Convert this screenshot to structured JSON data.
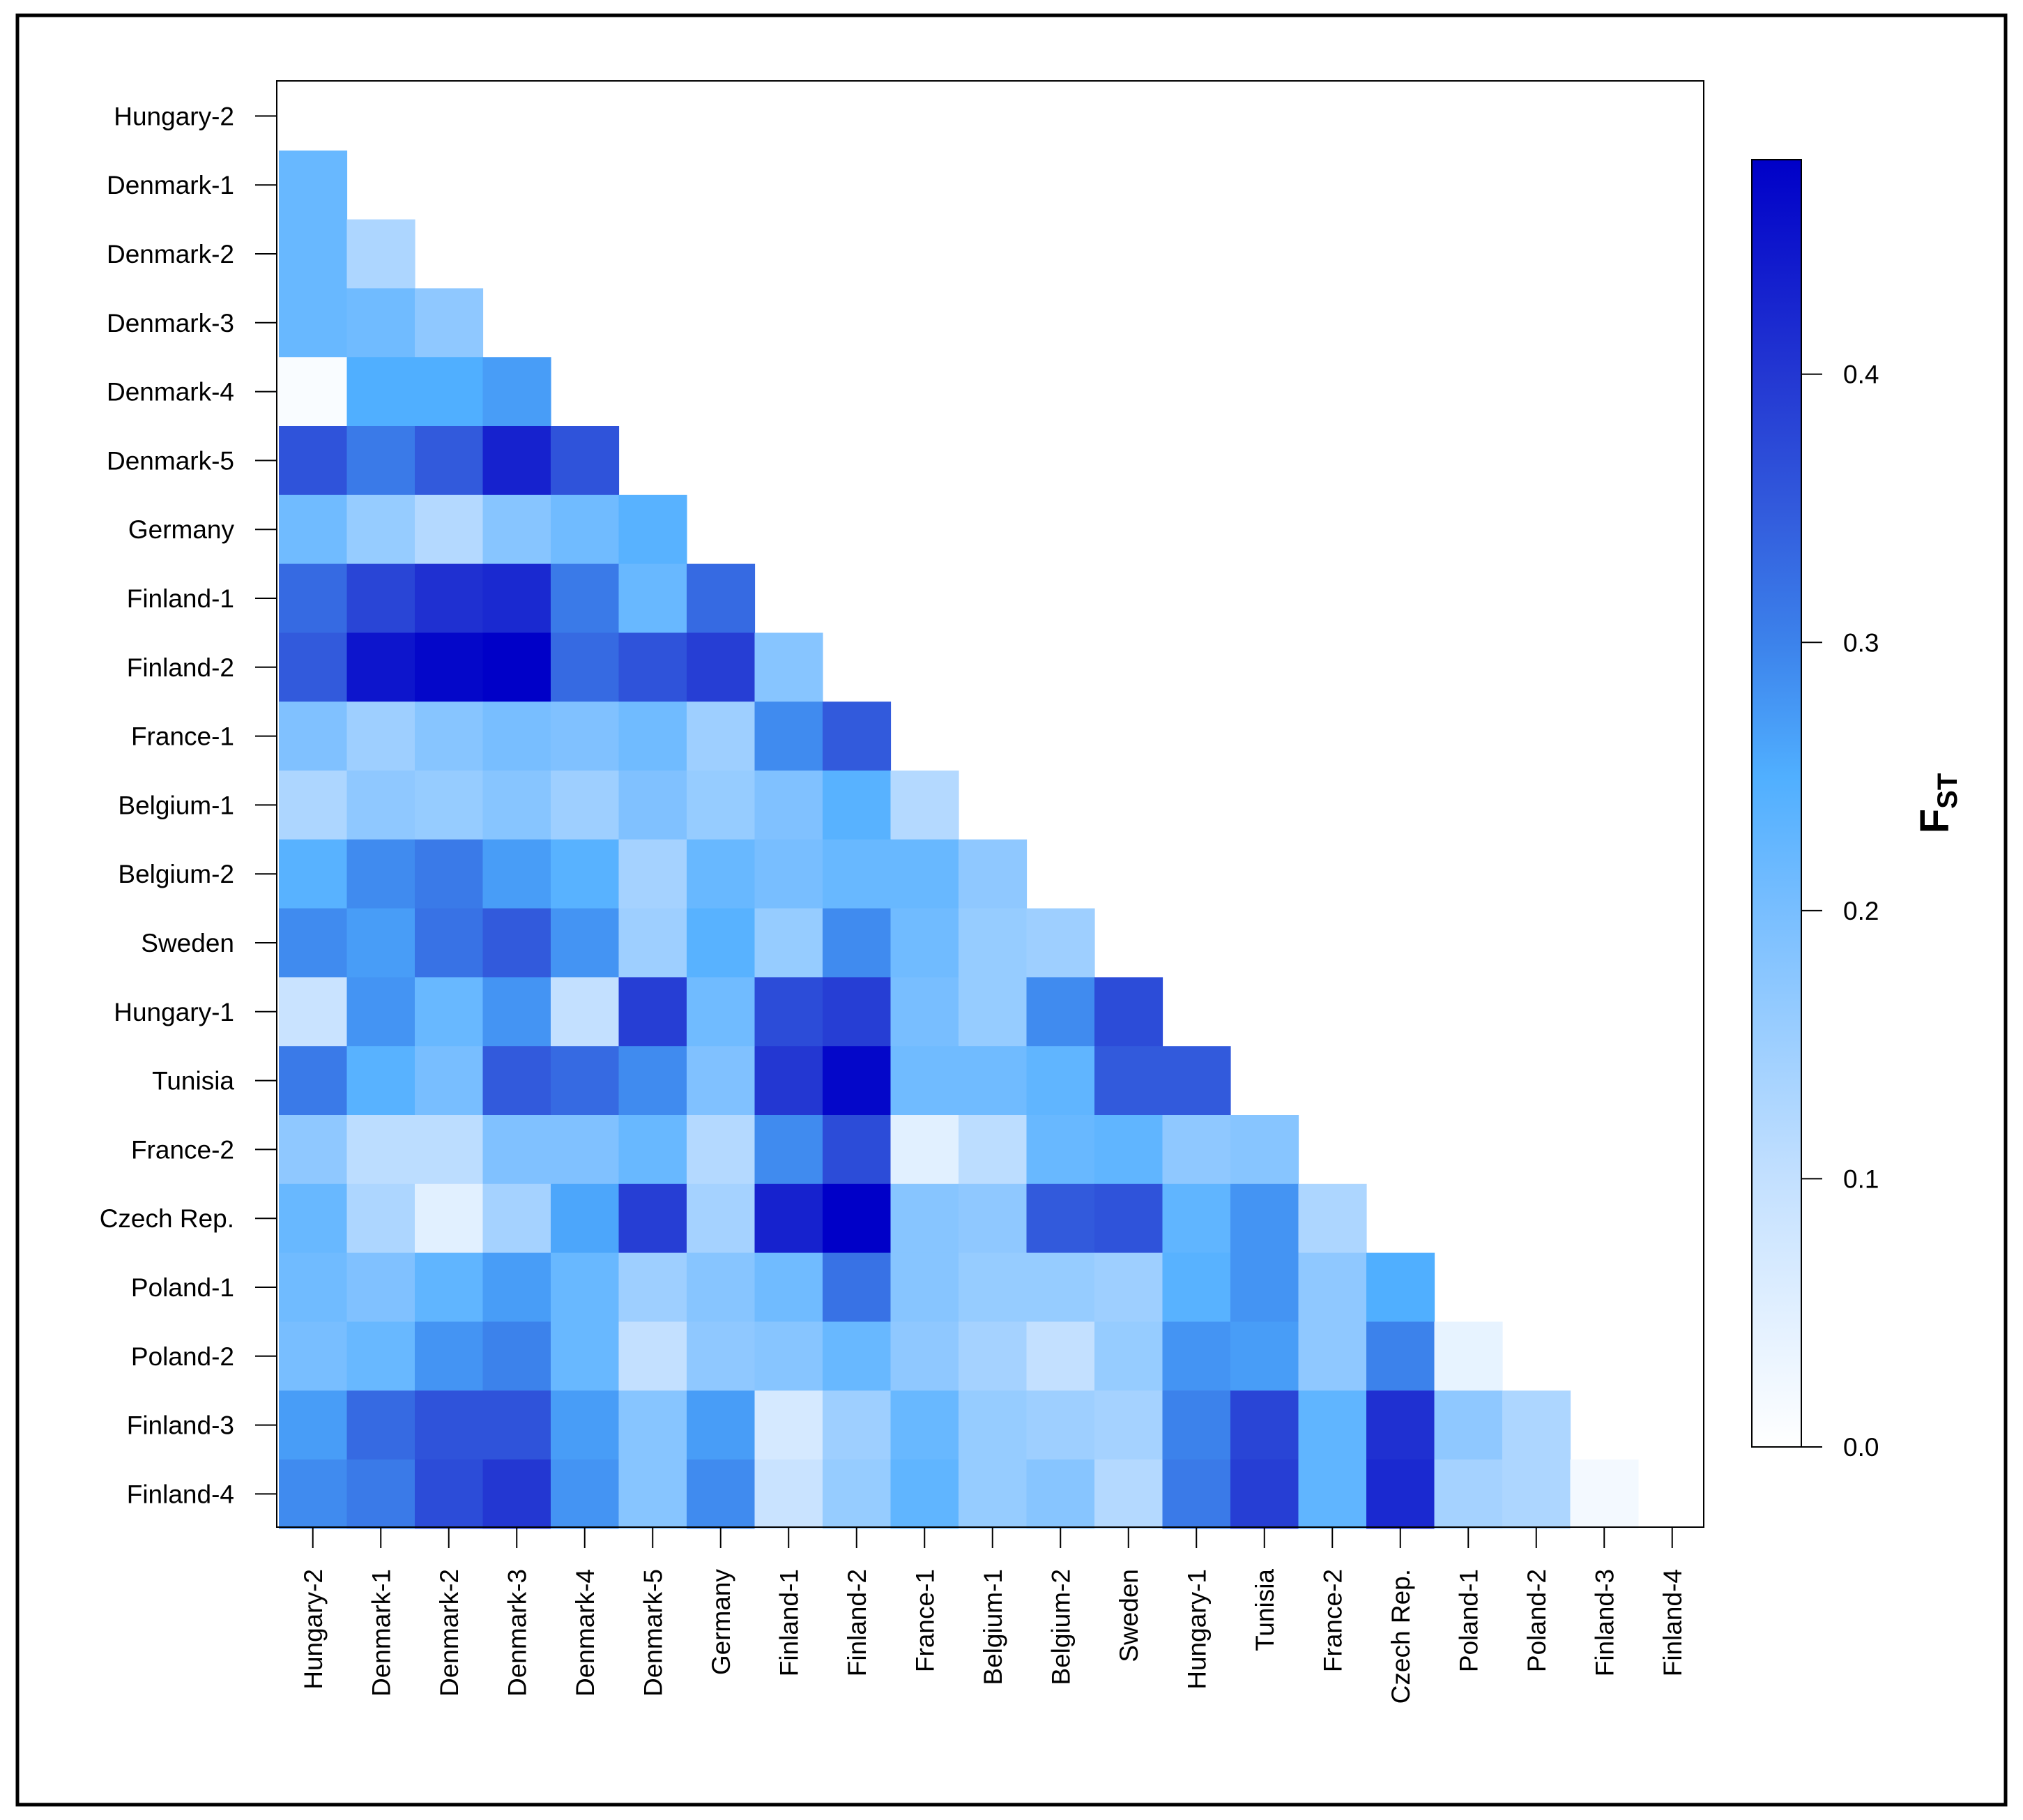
{
  "chart_data": {
    "type": "heatmap",
    "title": "",
    "legend_title": "F",
    "legend_subscript": "ST",
    "populations": [
      "Hungary-2",
      "Denmark-1",
      "Denmark-2",
      "Denmark-3",
      "Denmark-4",
      "Denmark-5",
      "Germany",
      "Finland-1",
      "Finland-2",
      "France-1",
      "Belgium-1",
      "Belgium-2",
      "Sweden",
      "Hungary-1",
      "Tunisia",
      "France-2",
      "Czech Rep.",
      "Poland-1",
      "Poland-2",
      "Finland-3",
      "Finland-4"
    ],
    "x_tick_labels": [
      "Hungary-2",
      "Denmark-1",
      "Denmark-2",
      "Denmark-3",
      "Denmark-4",
      "Denmark-5",
      "Germany",
      "Finland-1",
      "Finland-2",
      "France-1",
      "Belgium-1",
      "Belgium-2",
      "Sweden",
      "Hungary-1",
      "Tunisia",
      "France-2",
      "Czech Rep.",
      "Poland-1",
      "Poland-2",
      "Finland-3",
      "Finland-4"
    ],
    "y_tick_labels": [
      "Hungary-2",
      "Denmark-1",
      "Denmark-2",
      "Denmark-3",
      "Denmark-4",
      "Denmark-5",
      "Germany",
      "Finland-1",
      "Finland-2",
      "France-1",
      "Belgium-1",
      "Belgium-2",
      "Sweden",
      "Hungary-1",
      "Tunisia",
      "France-2",
      "Czech Rep.",
      "Poland-1",
      "Poland-2",
      "Finland-3",
      "Finland-4"
    ],
    "colorbar": {
      "range": [
        0.0,
        0.48
      ],
      "ticks": [
        0.0,
        0.1,
        0.2,
        0.3,
        0.4
      ],
      "tick_labels": [
        "0.0",
        "0.1",
        "0.2",
        "0.3",
        "0.4"
      ],
      "low_color": "#ffffff",
      "high_color": "#0000c8"
    },
    "matrix_lower": [
      [],
      [
        0.22
      ],
      [
        0.22,
        0.13
      ],
      [
        0.22,
        0.21,
        0.17
      ],
      [
        0.01,
        0.25,
        0.25,
        0.27
      ],
      [
        0.36,
        0.31,
        0.35,
        0.43,
        0.36
      ],
      [
        0.21,
        0.16,
        0.12,
        0.18,
        0.21,
        0.24
      ],
      [
        0.33,
        0.38,
        0.41,
        0.42,
        0.31,
        0.22,
        0.33
      ],
      [
        0.35,
        0.45,
        0.47,
        0.48,
        0.33,
        0.36,
        0.39,
        0.18
      ],
      [
        0.19,
        0.15,
        0.18,
        0.2,
        0.19,
        0.21,
        0.15,
        0.29,
        0.35
      ],
      [
        0.13,
        0.17,
        0.16,
        0.18,
        0.15,
        0.19,
        0.16,
        0.19,
        0.24,
        0.12
      ],
      [
        0.24,
        0.29,
        0.31,
        0.27,
        0.24,
        0.14,
        0.22,
        0.2,
        0.22,
        0.22,
        0.17
      ],
      [
        0.29,
        0.27,
        0.32,
        0.35,
        0.28,
        0.15,
        0.24,
        0.16,
        0.29,
        0.21,
        0.16,
        0.15
      ],
      [
        0.09,
        0.28,
        0.22,
        0.28,
        0.1,
        0.39,
        0.21,
        0.37,
        0.39,
        0.2,
        0.16,
        0.29,
        0.37
      ],
      [
        0.31,
        0.24,
        0.2,
        0.35,
        0.33,
        0.29,
        0.19,
        0.4,
        0.47,
        0.21,
        0.21,
        0.23,
        0.35,
        0.35
      ],
      [
        0.17,
        0.11,
        0.11,
        0.19,
        0.19,
        0.22,
        0.12,
        0.29,
        0.37,
        0.05,
        0.11,
        0.22,
        0.23,
        0.17,
        0.18
      ],
      [
        0.22,
        0.13,
        0.05,
        0.14,
        0.26,
        0.39,
        0.14,
        0.43,
        0.48,
        0.18,
        0.17,
        0.35,
        0.36,
        0.23,
        0.28,
        0.13
      ],
      [
        0.21,
        0.19,
        0.23,
        0.27,
        0.22,
        0.15,
        0.18,
        0.21,
        0.32,
        0.18,
        0.16,
        0.16,
        0.15,
        0.24,
        0.28,
        0.17,
        0.25
      ],
      [
        0.2,
        0.22,
        0.28,
        0.3,
        0.22,
        0.1,
        0.17,
        0.18,
        0.22,
        0.17,
        0.14,
        0.1,
        0.16,
        0.28,
        0.27,
        0.17,
        0.3,
        0.04
      ],
      [
        0.27,
        0.33,
        0.36,
        0.36,
        0.27,
        0.18,
        0.27,
        0.07,
        0.15,
        0.22,
        0.16,
        0.15,
        0.14,
        0.3,
        0.38,
        0.23,
        0.41,
        0.17,
        0.13
      ],
      [
        0.29,
        0.31,
        0.37,
        0.4,
        0.28,
        0.18,
        0.29,
        0.09,
        0.16,
        0.23,
        0.16,
        0.18,
        0.12,
        0.31,
        0.39,
        0.23,
        0.42,
        0.14,
        0.13,
        0.02
      ]
    ]
  }
}
